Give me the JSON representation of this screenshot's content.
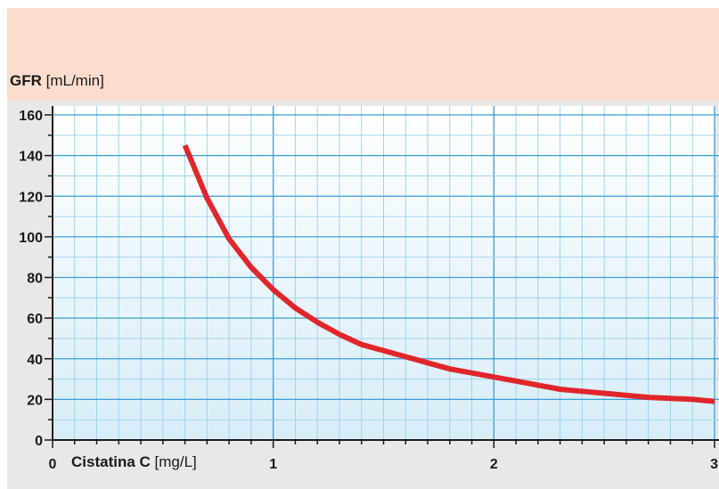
{
  "chart_data": {
    "type": "line",
    "ylabel_bold": "GFR",
    "ylabel_unit": "[mL/min]",
    "xlabel_bold": "Cistatina C",
    "xlabel_unit": "[mg/L]",
    "xlim": [
      0,
      3
    ],
    "ylim": [
      0,
      160
    ],
    "x_ticks": [
      0,
      1,
      2,
      3
    ],
    "y_ticks": [
      0,
      20,
      40,
      60,
      80,
      100,
      120,
      140,
      160
    ],
    "grid": true,
    "series": [
      {
        "color": "#e0262b",
        "x": [
          0.6,
          0.7,
          0.8,
          0.9,
          1.0,
          1.1,
          1.2,
          1.3,
          1.4,
          1.5,
          1.6,
          1.7,
          1.8,
          1.9,
          2.0,
          2.1,
          2.2,
          2.3,
          2.4,
          2.5,
          2.6,
          2.7,
          2.8,
          2.9,
          3.0
        ],
        "y": [
          145,
          119,
          99,
          85,
          74,
          65,
          58,
          52,
          47,
          44,
          41,
          38,
          35,
          33,
          31,
          29,
          27,
          25,
          24,
          23,
          22,
          21,
          20.5,
          20,
          19
        ]
      }
    ]
  }
}
